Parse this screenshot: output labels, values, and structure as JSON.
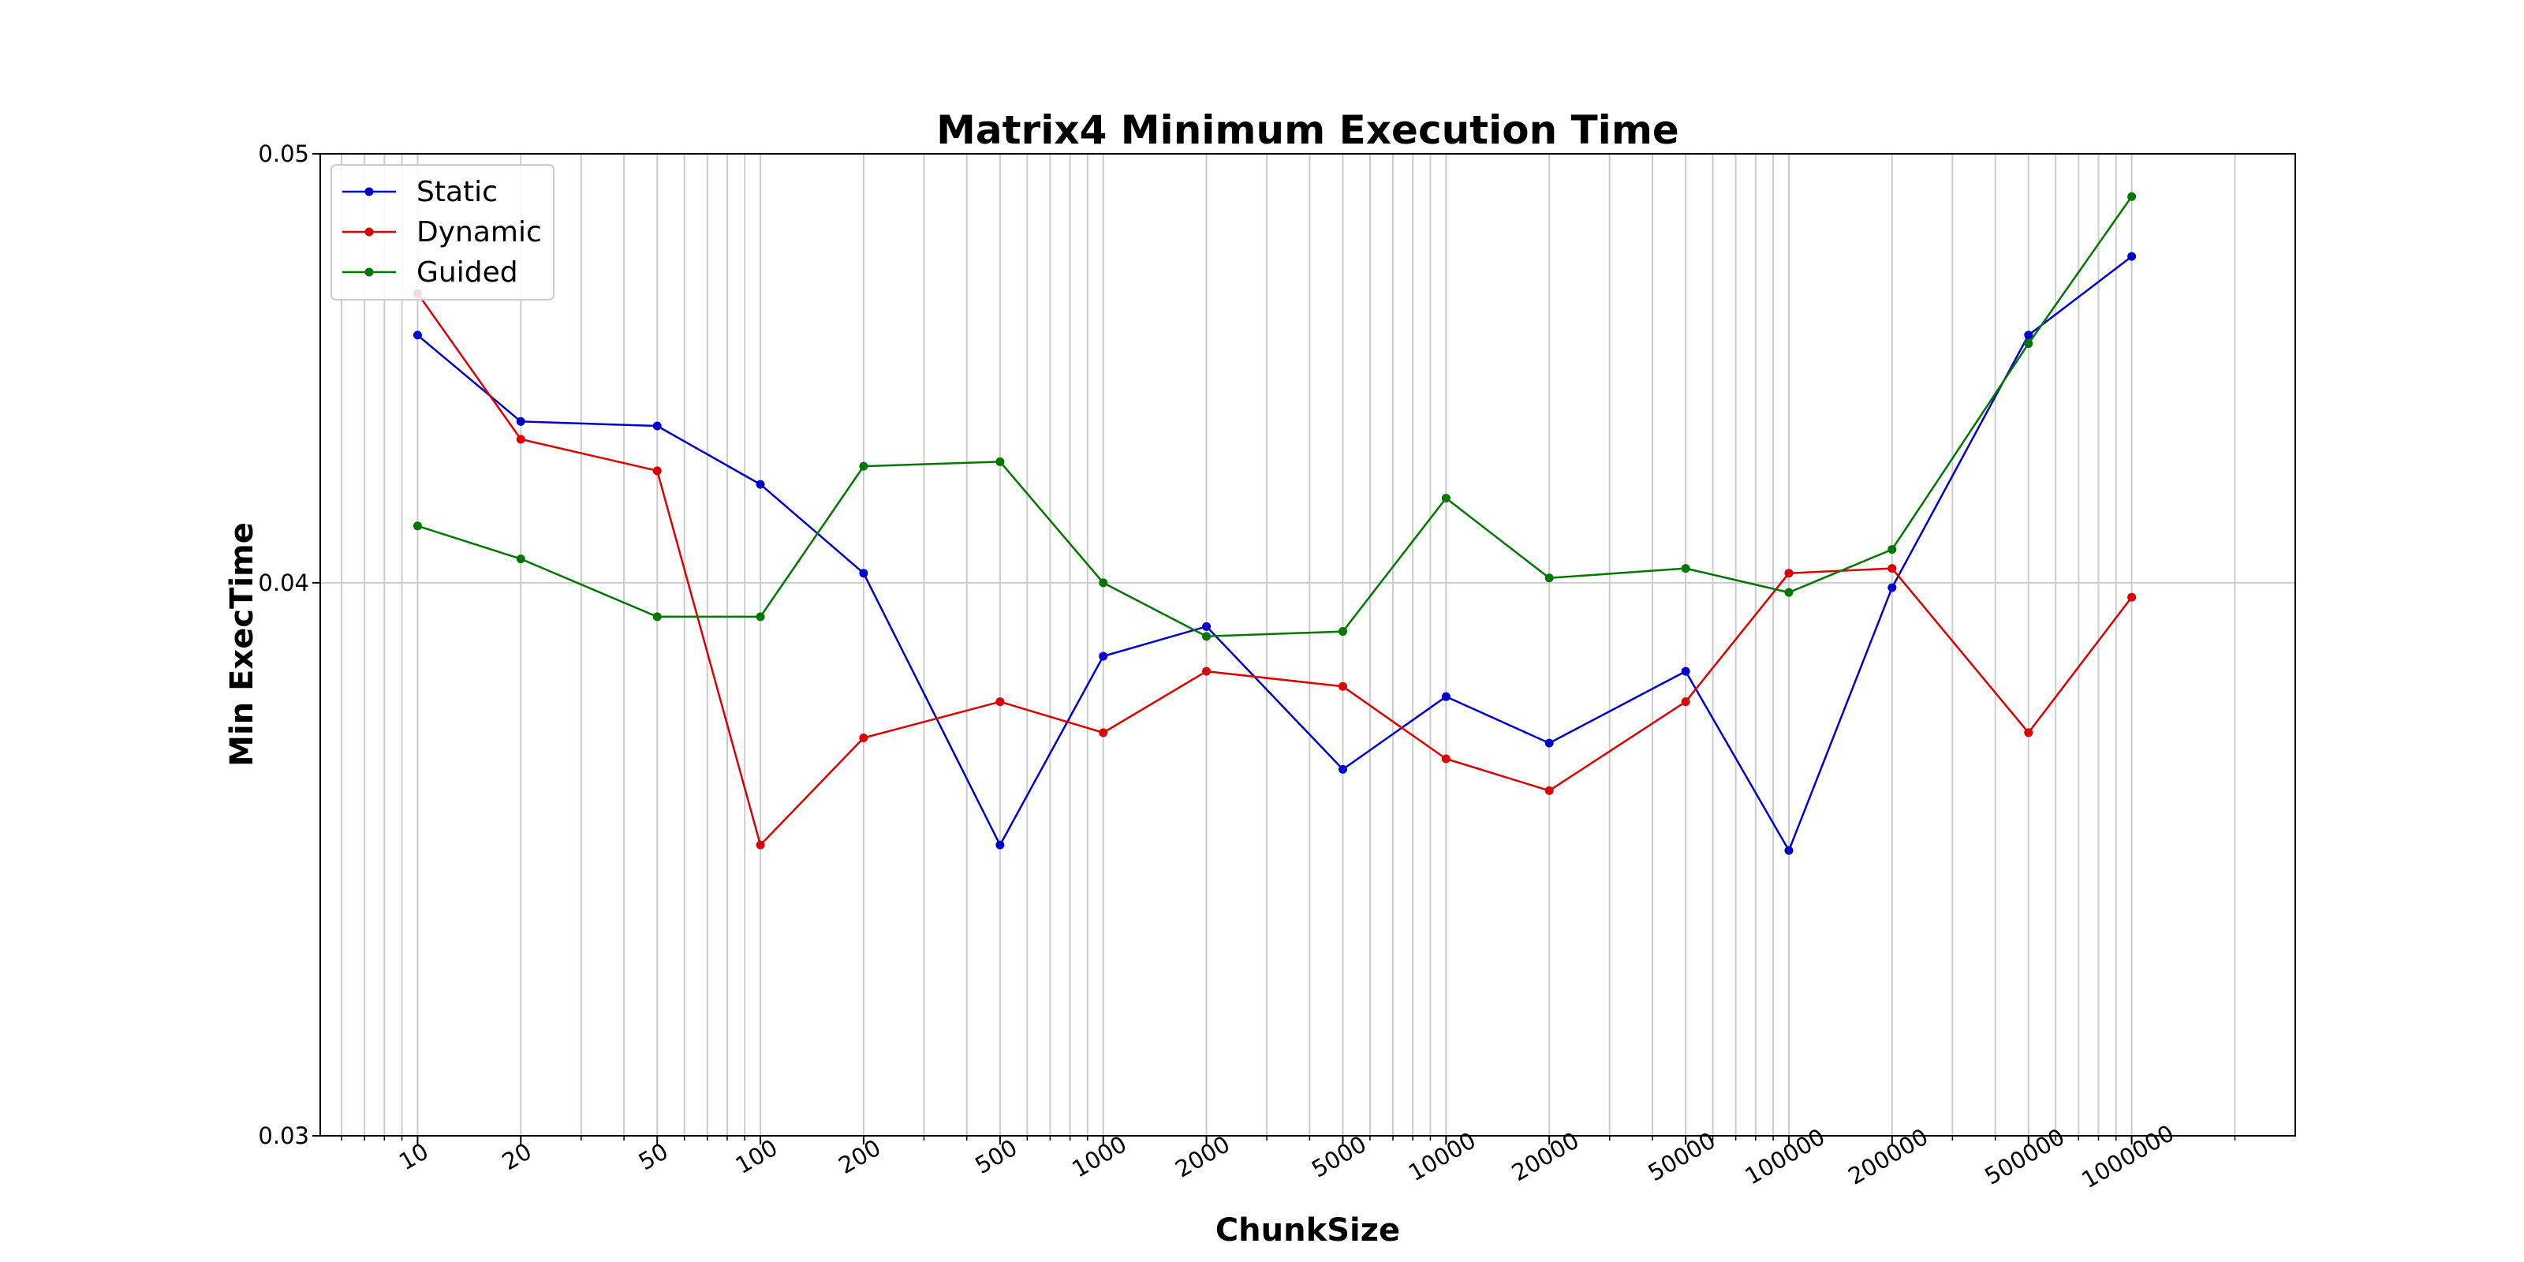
{
  "chart_data": {
    "type": "line",
    "title": "Matrix4 Minimum Execution Time",
    "xlabel": "ChunkSize",
    "ylabel": "Min ExecTime",
    "x_scale": "log",
    "y_scale": "log",
    "xlim": [
      5.2,
      3000000
    ],
    "ylim": [
      0.03,
      0.05
    ],
    "x": [
      10,
      20,
      50,
      100,
      200,
      500,
      1000,
      2000,
      5000,
      10000,
      20000,
      50000,
      100000,
      200000,
      500000,
      1000000
    ],
    "x_tick_labels": [
      "10",
      "20",
      "50",
      "100",
      "200",
      "500",
      "1000",
      "2000",
      "5000",
      "10000",
      "20000",
      "50000",
      "100000",
      "200000",
      "500000",
      "1000000"
    ],
    "y_ticks": [
      0.03,
      0.04,
      0.05
    ],
    "y_tick_labels": [
      "0.03",
      "0.04",
      "0.05"
    ],
    "grid": true,
    "legend_position": "top-left",
    "series": [
      {
        "name": "Static",
        "color": "#0000cc",
        "values": [
          0.0455,
          0.0435,
          0.0434,
          0.0421,
          0.0402,
          0.0349,
          0.0385,
          0.0391,
          0.0363,
          0.0377,
          0.0368,
          0.0382,
          0.0348,
          0.0399,
          0.0455,
          0.0474
        ]
      },
      {
        "name": "Dynamic",
        "color": "#dd0000",
        "values": [
          0.0465,
          0.0431,
          0.0424,
          0.0349,
          0.0369,
          0.0376,
          0.037,
          0.0382,
          0.0379,
          0.0365,
          0.0359,
          0.0376,
          0.0402,
          0.0403,
          0.037,
          0.0397
        ]
      },
      {
        "name": "Guided",
        "color": "#007700",
        "values": [
          0.0412,
          0.0405,
          0.0393,
          0.0393,
          0.0425,
          0.0426,
          0.04,
          0.0389,
          0.039,
          0.0418,
          0.0401,
          0.0403,
          0.0398,
          0.0407,
          0.0453,
          0.0489
        ]
      }
    ]
  }
}
